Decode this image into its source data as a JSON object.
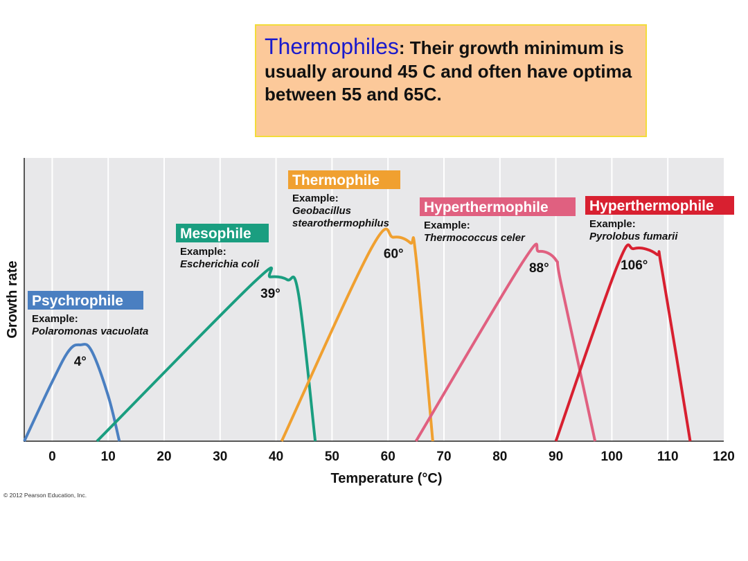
{
  "callout": {
    "highlight": "Thermophiles",
    "text": ": Their growth minimum is usually around 45 C and often have  optima between 55 and 65C."
  },
  "copyright": "© 2012 Pearson Education, Inc.",
  "chart_data": {
    "type": "line",
    "xlabel": "Temperature (°C)",
    "ylabel": "Growth rate",
    "xlim": [
      -5,
      120
    ],
    "x_ticks": [
      0,
      10,
      20,
      30,
      40,
      50,
      60,
      70,
      80,
      90,
      100,
      110,
      120
    ],
    "grid": "vertical",
    "series": [
      {
        "name": "Psychrophile",
        "color": "#4a7fc1",
        "example_label": "Example:",
        "example": "Polaromonas vacuolata",
        "peak_label": "4°",
        "points": [
          [
            -5,
            0
          ],
          [
            0,
            0.21
          ],
          [
            3,
            0.32
          ],
          [
            5,
            0.34
          ],
          [
            7,
            0.32
          ],
          [
            10,
            0.16
          ],
          [
            12,
            0
          ]
        ]
      },
      {
        "name": "Mesophile",
        "color": "#1a9e80",
        "example_label": "Example:",
        "example": "Escherichia coli",
        "peak_label": "39°",
        "points": [
          [
            8,
            0
          ],
          [
            36,
            0.56
          ],
          [
            39,
            0.58
          ],
          [
            42,
            0.57
          ],
          [
            44,
            0.52
          ],
          [
            47,
            0
          ]
        ]
      },
      {
        "name": "Thermophile",
        "color": "#f0a030",
        "example_label": "Example:",
        "example": "Geobacillus stearothermophilus",
        "peak_label": "60°",
        "points": [
          [
            41,
            0
          ],
          [
            57,
            0.68
          ],
          [
            61,
            0.72
          ],
          [
            64,
            0.7
          ],
          [
            65,
            0.65
          ],
          [
            68,
            0
          ]
        ]
      },
      {
        "name": "Hyperthermophile",
        "color": "#e06080",
        "example_label": "Example:",
        "example": "Thermococcus celer",
        "peak_label": "88°",
        "points": [
          [
            65,
            0
          ],
          [
            84,
            0.63
          ],
          [
            87,
            0.67
          ],
          [
            90,
            0.64
          ],
          [
            91,
            0.55
          ],
          [
            97,
            0
          ]
        ]
      },
      {
        "name": "Hyperthermophile",
        "color": "#d82030",
        "example_label": "Example:",
        "example": "Pyrolobus fumarii",
        "peak_label": "106°",
        "points": [
          [
            90,
            0
          ],
          [
            101,
            0.62
          ],
          [
            104,
            0.68
          ],
          [
            108,
            0.66
          ],
          [
            109,
            0.6
          ],
          [
            114,
            0
          ]
        ]
      }
    ]
  }
}
